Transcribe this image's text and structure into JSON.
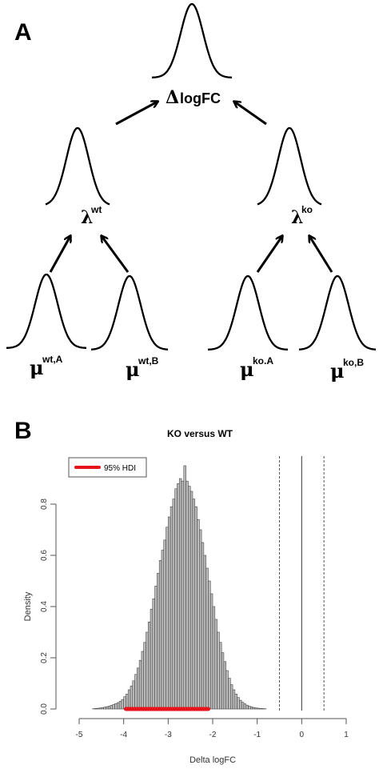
{
  "panel_a": {
    "label": "A",
    "top": {
      "symbol": "Δ",
      "text": "logFC"
    },
    "left_mid": {
      "symbol": "λ",
      "sup": "wt"
    },
    "right_mid": {
      "symbol": "λ",
      "sup": "ko"
    },
    "leaves": [
      {
        "symbol": "μ",
        "sup": "wt,A"
      },
      {
        "symbol": "μ",
        "sup": "wt,B"
      },
      {
        "symbol": "μ",
        "sup": "ko.A"
      },
      {
        "symbol": "μ",
        "sup": "ko,B"
      }
    ]
  },
  "panel_b": {
    "label": "B"
  },
  "chart_data": {
    "type": "bar",
    "title": "KO versus WT",
    "xlabel": "Delta logFC",
    "ylabel": "Density",
    "xlim": [
      -5,
      1
    ],
    "ylim": [
      0,
      0.95
    ],
    "xticks": [
      "-5",
      "-4",
      "-3",
      "-2",
      "-1",
      "0",
      "1"
    ],
    "yticks": [
      "0.0",
      "0.2",
      "0.4",
      "0.6",
      "0.8"
    ],
    "legend": {
      "label": "95% HDI",
      "color": "#e8141b",
      "placement": "top-left"
    },
    "hdi": [
      -3.95,
      -2.1
    ],
    "reference_lines": {
      "solid": [
        0
      ],
      "dashed": [
        -0.5,
        0.5
      ]
    },
    "bin_width": 0.05,
    "bins_start": -4.7,
    "density": [
      0.001,
      0.002,
      0.003,
      0.004,
      0.005,
      0.007,
      0.009,
      0.011,
      0.014,
      0.017,
      0.021,
      0.025,
      0.03,
      0.037,
      0.048,
      0.058,
      0.075,
      0.09,
      0.11,
      0.135,
      0.16,
      0.19,
      0.225,
      0.26,
      0.3,
      0.34,
      0.39,
      0.43,
      0.48,
      0.53,
      0.58,
      0.62,
      0.66,
      0.71,
      0.75,
      0.79,
      0.82,
      0.86,
      0.88,
      0.9,
      0.89,
      0.95,
      0.89,
      0.87,
      0.85,
      0.82,
      0.79,
      0.74,
      0.7,
      0.65,
      0.6,
      0.55,
      0.5,
      0.45,
      0.4,
      0.35,
      0.3,
      0.26,
      0.22,
      0.185,
      0.15,
      0.12,
      0.095,
      0.075,
      0.058,
      0.045,
      0.034,
      0.026,
      0.02,
      0.015,
      0.011,
      0.008,
      0.006,
      0.004,
      0.003,
      0.002,
      0.0015,
      0.001
    ],
    "colors": {
      "bar_fill": "#bdbdbd",
      "bar_stroke": "#444444"
    }
  }
}
